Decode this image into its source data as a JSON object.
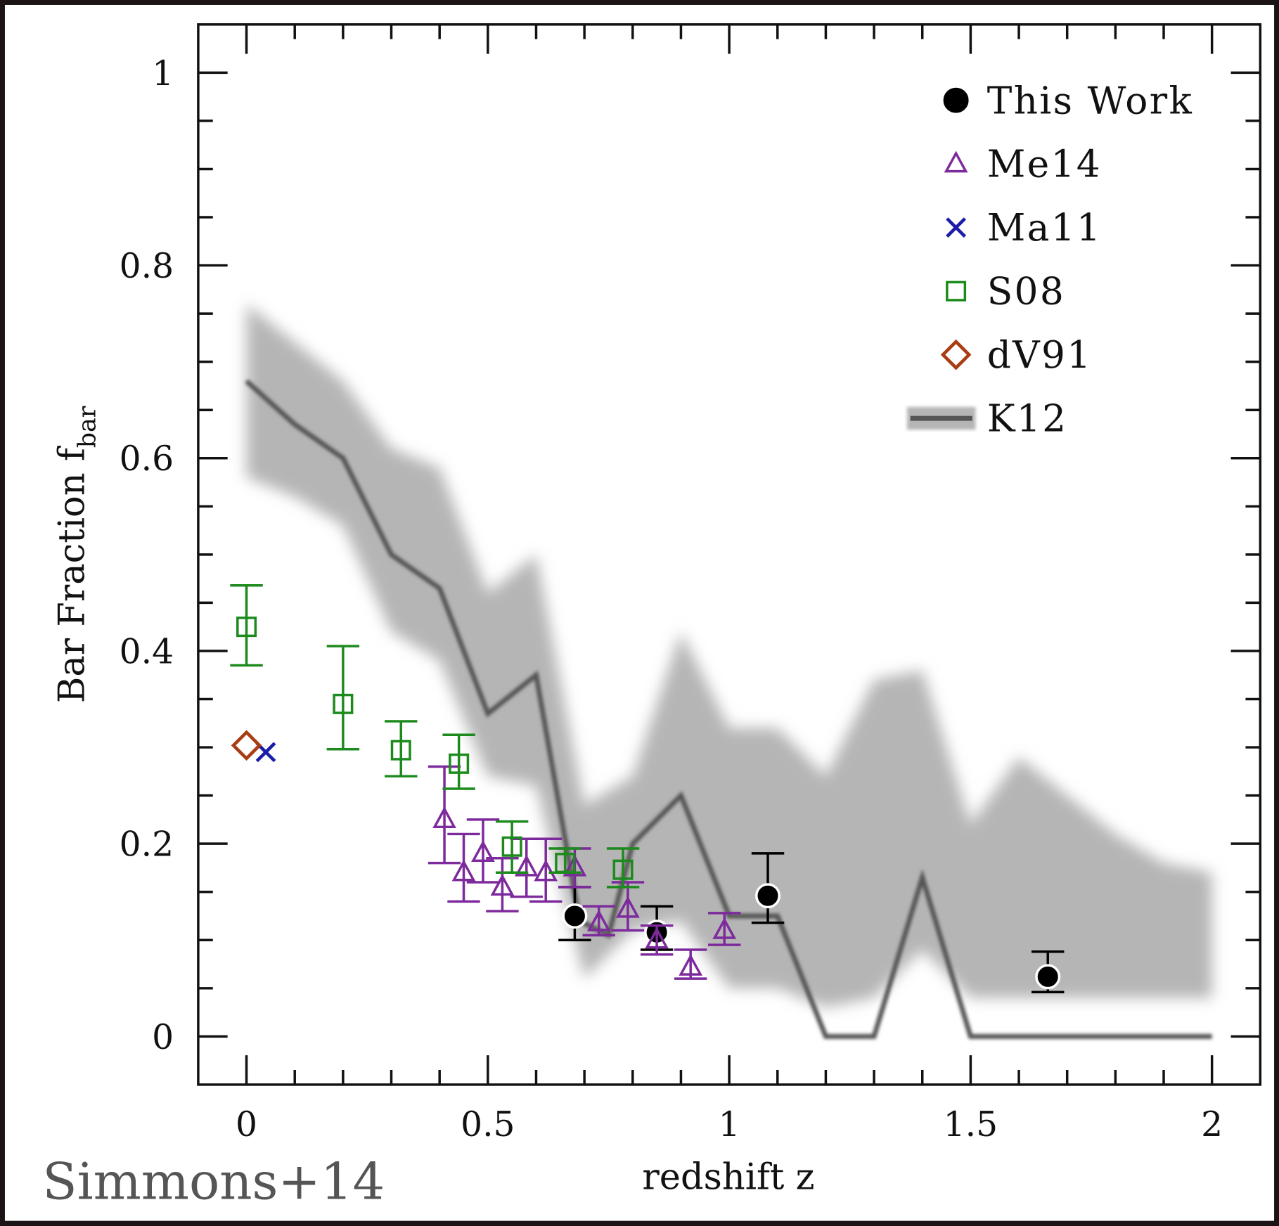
{
  "chart_data": {
    "type": "scatter",
    "xlabel": "redshift z",
    "ylabel": "Bar Fraction f",
    "ylabel_subscript": "bar",
    "annotation": "Simmons+14",
    "xlim": [
      -0.1,
      2.1
    ],
    "ylim": [
      -0.05,
      1.05
    ],
    "xticks": [
      0,
      0.5,
      1,
      1.5,
      2
    ],
    "yticks": [
      0,
      0.2,
      0.4,
      0.6,
      0.8,
      1
    ],
    "xminorticks": [
      0.1,
      0.2,
      0.3,
      0.4,
      0.6,
      0.7,
      0.8,
      0.9,
      1.1,
      1.2,
      1.3,
      1.4,
      1.6,
      1.7,
      1.8,
      1.9
    ],
    "yminorticks": [
      0.05,
      0.1,
      0.15,
      0.25,
      0.3,
      0.35,
      0.45,
      0.5,
      0.55,
      0.65,
      0.7,
      0.75,
      0.85,
      0.9,
      0.95
    ],
    "legend": "upper right",
    "series": [
      {
        "name": "This Work",
        "color": "#000000",
        "marker": "circle",
        "x": [
          0.68,
          0.85,
          1.08,
          1.66
        ],
        "values": [
          0.125,
          0.108,
          0.146,
          0.062
        ],
        "err_minus": [
          0.025,
          0.018,
          0.028,
          0.016
        ],
        "err_plus": [
          0.03,
          0.027,
          0.044,
          0.026
        ]
      },
      {
        "name": "Me14",
        "color": "#7d2a9c",
        "marker": "triangle",
        "x": [
          0.41,
          0.45,
          0.49,
          0.53,
          0.58,
          0.62,
          0.68,
          0.73,
          0.79,
          0.85,
          0.92,
          0.99
        ],
        "values": [
          0.225,
          0.17,
          0.19,
          0.155,
          0.175,
          0.17,
          0.175,
          0.118,
          0.132,
          0.1,
          0.072,
          0.11
        ],
        "err_minus": [
          0.045,
          0.03,
          0.03,
          0.025,
          0.03,
          0.03,
          0.02,
          0.013,
          0.022,
          0.015,
          0.012,
          0.015
        ],
        "err_plus": [
          0.055,
          0.04,
          0.035,
          0.03,
          0.03,
          0.035,
          0.02,
          0.017,
          0.028,
          0.015,
          0.018,
          0.018
        ]
      },
      {
        "name": "Ma11",
        "color": "#1c1ca8",
        "marker": "cross",
        "x": [
          0.04
        ],
        "values": [
          0.295
        ]
      },
      {
        "name": "S08",
        "color": "#1c8a1c",
        "marker": "square",
        "x": [
          0.0,
          0.2,
          0.32,
          0.44,
          0.55,
          0.66,
          0.78
        ],
        "values": [
          0.425,
          0.345,
          0.297,
          0.283,
          0.197,
          0.18,
          0.173
        ],
        "err_minus": [
          0.04,
          0.047,
          0.027,
          0.026,
          0.027,
          0.01,
          0.018
        ],
        "err_plus": [
          0.043,
          0.06,
          0.03,
          0.03,
          0.026,
          0.015,
          0.022
        ]
      },
      {
        "name": "dV91",
        "color": "#a83c12",
        "marker": "diamond",
        "x": [
          0.0
        ],
        "values": [
          0.302
        ]
      },
      {
        "name": "K12",
        "color": "#555555",
        "marker": "line",
        "x": [
          0,
          0.1,
          0.2,
          0.3,
          0.4,
          0.5,
          0.6,
          0.69,
          0.75,
          0.8,
          0.9,
          1.0,
          1.1,
          1.2,
          1.3,
          1.4,
          1.5,
          2.0
        ],
        "values": [
          0.68,
          0.635,
          0.6,
          0.5,
          0.465,
          0.335,
          0.375,
          0.12,
          0.105,
          0.2,
          0.25,
          0.125,
          0.125,
          0.0,
          0.0,
          0.165,
          0.0,
          0.0
        ],
        "band": {
          "color": "#b5b5b5",
          "x": [
            0,
            0.1,
            0.2,
            0.3,
            0.4,
            0.5,
            0.6,
            0.7,
            0.8,
            0.9,
            1.0,
            1.1,
            1.2,
            1.3,
            1.4,
            1.5,
            1.6,
            1.7,
            1.8,
            1.9,
            2.0
          ],
          "upper": [
            0.76,
            0.72,
            0.68,
            0.61,
            0.59,
            0.46,
            0.5,
            0.24,
            0.27,
            0.42,
            0.32,
            0.32,
            0.27,
            0.37,
            0.38,
            0.22,
            0.29,
            0.25,
            0.21,
            0.18,
            0.17
          ],
          "lower": [
            0.58,
            0.56,
            0.53,
            0.42,
            0.39,
            0.27,
            0.26,
            0.06,
            0.11,
            0.12,
            0.05,
            0.05,
            0.03,
            0.04,
            0.09,
            0.04,
            0.04,
            0.04,
            0.04,
            0.04,
            0.04
          ]
        }
      }
    ]
  }
}
